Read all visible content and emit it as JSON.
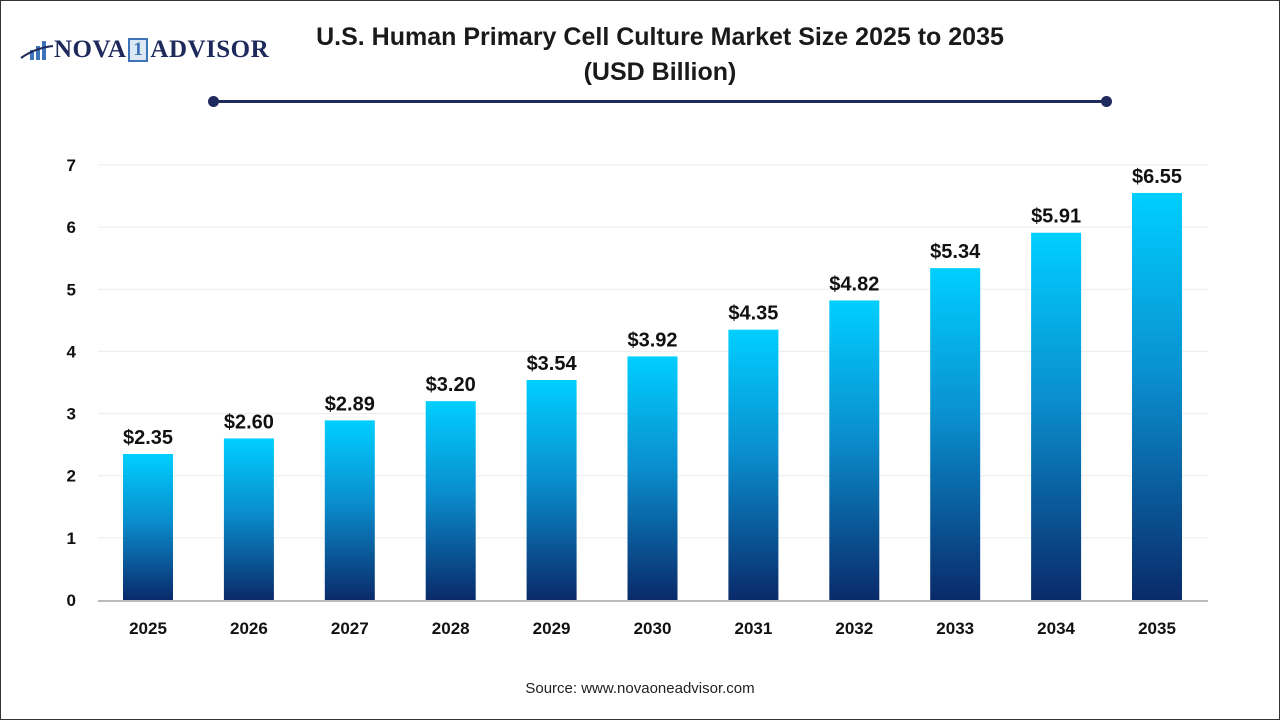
{
  "logo": {
    "text_left": "NOVA",
    "text_mid": "1",
    "text_right": "ADVISOR"
  },
  "header": {
    "title_line1": "U.S. Human Primary Cell Culture Market Size 2025 to 2035",
    "title_line2": "(USD Billion)"
  },
  "source": "Source: www.novaoneadvisor.com",
  "colors": {
    "bar_top": "#00cfff",
    "bar_bottom": "#0a2a6a",
    "accent": "#1f2a5c"
  },
  "chart_data": {
    "type": "bar",
    "title": "U.S. Human Primary Cell Culture Market Size 2025 to 2035 (USD Billion)",
    "categories": [
      "2025",
      "2026",
      "2027",
      "2028",
      "2029",
      "2030",
      "2031",
      "2032",
      "2033",
      "2034",
      "2035"
    ],
    "values": [
      2.35,
      2.6,
      2.89,
      3.2,
      3.54,
      3.92,
      4.35,
      4.82,
      5.34,
      5.91,
      6.55
    ],
    "data_labels": [
      "$2.35",
      "$2.60",
      "$2.89",
      "$3.20",
      "$3.54",
      "$3.92",
      "$4.35",
      "$4.82",
      "$5.34",
      "$5.91",
      "$6.55"
    ],
    "yticks": [
      "0",
      "1",
      "2",
      "3",
      "4",
      "5",
      "6",
      "7"
    ],
    "ylim": [
      0,
      7
    ],
    "grid": true,
    "xlabel": "",
    "ylabel": ""
  }
}
